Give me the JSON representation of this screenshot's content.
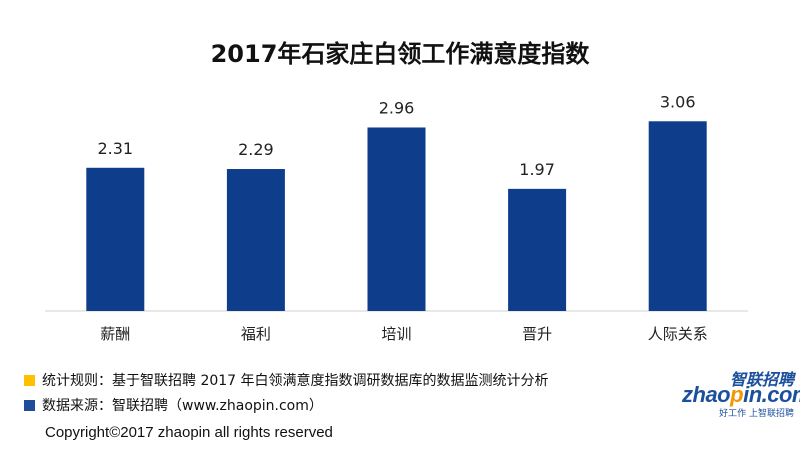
{
  "chart_data": {
    "type": "bar",
    "title": "2017年石家庄白领工作满意度指数",
    "categories": [
      "薪酬",
      "福利",
      "培训",
      "晋升",
      "人际关系"
    ],
    "values": [
      2.31,
      2.29,
      2.96,
      1.97,
      3.06
    ],
    "value_labels": [
      "2.31",
      "2.29",
      "2.96",
      "1.97",
      "3.06"
    ],
    "ylim": [
      0,
      3.5
    ],
    "grid": false,
    "bar_color": "#0e3d8c"
  },
  "notes": {
    "rule_color": "#ffc000",
    "rule_text": "统计规则：基于智联招聘 2017 年白领满意度指数调研数据库的数据监测统计分析",
    "source_color": "#1f4e99",
    "source_text": "数据来源：智联招聘（www.zhaopin.com）"
  },
  "copyright": "Copyright©2017 zhaopin all rights reserved",
  "logo": {
    "cn": "智联招聘",
    "en_pre": "zhao",
    "en_o": "p",
    "en_post": "in.com",
    "tagline": "好工作 上智联招聘"
  }
}
